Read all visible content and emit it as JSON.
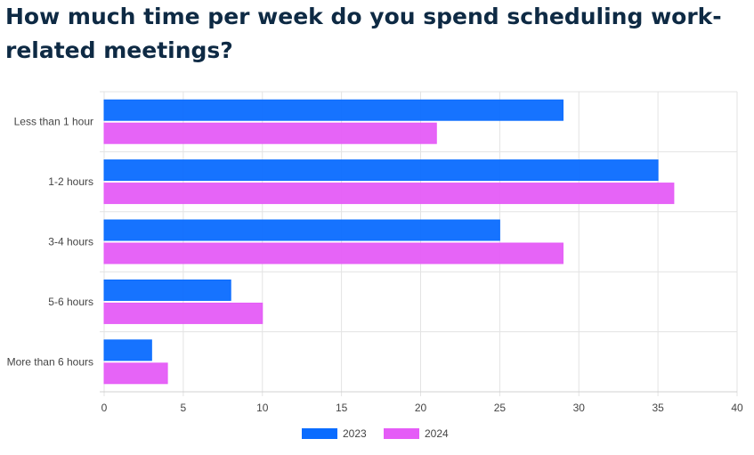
{
  "chart_data": {
    "type": "bar",
    "orientation": "horizontal",
    "title": "How much time per week do you spend scheduling work-related meetings?",
    "categories": [
      "Less than 1 hour",
      "1-2 hours",
      "3-4 hours",
      "5-6 hours",
      "More than 6 hours"
    ],
    "series": [
      {
        "name": "2023",
        "color": "#0a6cff",
        "values": [
          29,
          35,
          25,
          8,
          3
        ]
      },
      {
        "name": "2024",
        "color": "#e55cf7",
        "values": [
          21,
          36,
          29,
          10,
          4
        ]
      }
    ],
    "xlim": [
      0,
      40
    ],
    "xticks": [
      0,
      5,
      10,
      15,
      20,
      25,
      30,
      35,
      40
    ],
    "grid": true,
    "legend": "bottom"
  }
}
